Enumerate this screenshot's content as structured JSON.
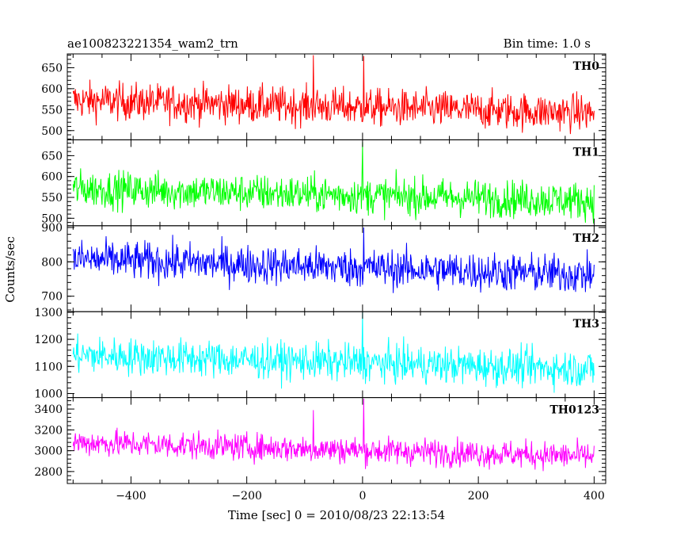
{
  "header": {
    "title": "ae100823221354_wam2_trn",
    "bin_time": "Bin time: 1.0 s"
  },
  "chart_data": {
    "type": "line",
    "title": "ae100823221354_wam2_trn",
    "subtitle": "Bin time: 1.0 s",
    "xlabel": "Time [sec] 0 = 2010/08/23 22:13:54",
    "ylabel": "Counts/sec",
    "xlim": [
      -510,
      420
    ],
    "xticks": [
      -400,
      -200,
      0,
      200,
      400
    ],
    "x_range": [
      -500,
      400
    ],
    "bin_time_s": 1.0,
    "grid": false,
    "panels": [
      {
        "name": "TH0",
        "color": "#ff0000",
        "ylim": [
          478,
          683
        ],
        "yticks": [
          500,
          550,
          600,
          650
        ],
        "mean_start": 572,
        "mean_end": 542,
        "noise": 22,
        "spikes": [
          {
            "x": -85,
            "y": 680
          },
          {
            "x": 2,
            "y": 678
          }
        ]
      },
      {
        "name": "TH1",
        "color": "#00ff00",
        "ylim": [
          482,
          688
        ],
        "yticks": [
          500,
          550,
          600,
          650
        ],
        "mean_start": 571,
        "mean_end": 542,
        "noise": 22,
        "spikes": [
          {
            "x": 0,
            "y": 682
          }
        ]
      },
      {
        "name": "TH2",
        "color": "#0000ff",
        "ylim": [
          655,
          905
        ],
        "yticks": [
          700,
          800,
          900
        ],
        "mean_start": 808,
        "mean_end": 762,
        "noise": 28,
        "spikes": [
          {
            "x": 2,
            "y": 900
          }
        ]
      },
      {
        "name": "TH3",
        "color": "#00ffff",
        "ylim": [
          985,
          1302
        ],
        "yticks": [
          1000,
          1100,
          1200,
          1300
        ],
        "mean_start": 1142,
        "mean_end": 1090,
        "noise": 34,
        "spikes": [
          {
            "x": 0,
            "y": 1300
          }
        ]
      },
      {
        "name": "TH0123",
        "color": "#ff00ff",
        "ylim": [
          2685,
          3510
        ],
        "yticks": [
          2800,
          3000,
          3200,
          3400
        ],
        "mean_start": 3080,
        "mean_end": 2945,
        "noise": 65,
        "spikes": [
          {
            "x": 2,
            "y": 3500
          },
          {
            "x": -85,
            "y": 3390
          }
        ]
      }
    ]
  }
}
